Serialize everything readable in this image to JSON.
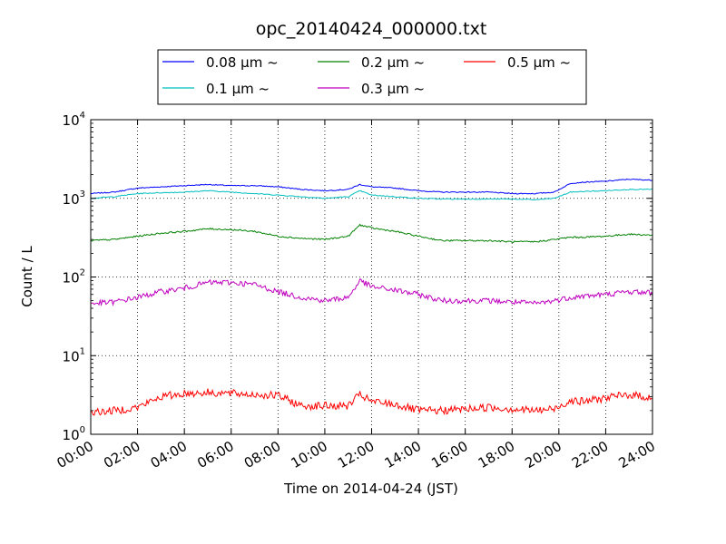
{
  "chart_data": {
    "type": "line",
    "title": "opc_20140424_000000.txt",
    "xlabel": "Time on 2014-04-24 (JST)",
    "ylabel": "Count / L",
    "y_scale": "log",
    "ylim": [
      1,
      10000
    ],
    "xlim": [
      "00:00",
      "24:00"
    ],
    "grid": true,
    "legend_position": "top",
    "x_ticks": [
      "00:00",
      "02:00",
      "04:00",
      "06:00",
      "08:00",
      "10:00",
      "12:00",
      "14:00",
      "16:00",
      "18:00",
      "20:00",
      "22:00",
      "24:00"
    ],
    "y_ticks": [
      {
        "base": "10",
        "exp": "0"
      },
      {
        "base": "10",
        "exp": "1"
      },
      {
        "base": "10",
        "exp": "2"
      },
      {
        "base": "10",
        "exp": "3"
      },
      {
        "base": "10",
        "exp": "4"
      }
    ],
    "x_hours": [
      0,
      1,
      2,
      3,
      4,
      5,
      6,
      7,
      8,
      9,
      10,
      11,
      11.5,
      12,
      13,
      14,
      15,
      16,
      17,
      18,
      19,
      19.8,
      20.5,
      21,
      22,
      23,
      24
    ],
    "series": [
      {
        "name": "0.08 μm ~",
        "color": "#0000ff",
        "noise": 0.006,
        "values": [
          1150,
          1200,
          1350,
          1400,
          1450,
          1500,
          1450,
          1450,
          1400,
          1300,
          1250,
          1300,
          1500,
          1400,
          1350,
          1250,
          1200,
          1200,
          1200,
          1150,
          1150,
          1200,
          1550,
          1600,
          1650,
          1750,
          1700
        ]
      },
      {
        "name": "0.1 μm ~",
        "color": "#00bfbf",
        "noise": 0.006,
        "values": [
          1000,
          1050,
          1150,
          1180,
          1200,
          1250,
          1200,
          1150,
          1100,
          1050,
          1000,
          1050,
          1250,
          1100,
          1050,
          1000,
          980,
          980,
          980,
          980,
          960,
          1000,
          1200,
          1220,
          1250,
          1300,
          1300
        ]
      },
      {
        "name": "0.2 μm ~",
        "color": "#008000",
        "noise": 0.01,
        "values": [
          290,
          300,
          330,
          360,
          380,
          410,
          400,
          380,
          330,
          310,
          300,
          330,
          460,
          420,
          380,
          330,
          290,
          290,
          290,
          280,
          280,
          300,
          320,
          320,
          330,
          350,
          340
        ]
      },
      {
        "name": "0.3 μm ~",
        "color": "#bf00bf",
        "noise": 0.035,
        "values": [
          46,
          48,
          55,
          65,
          72,
          85,
          85,
          80,
          65,
          55,
          50,
          55,
          90,
          75,
          68,
          60,
          50,
          50,
          50,
          48,
          46,
          50,
          55,
          57,
          60,
          65,
          63
        ]
      },
      {
        "name": "0.5 μm ~",
        "color": "#ff0000",
        "noise": 0.05,
        "values": [
          1.9,
          2.0,
          2.2,
          3.0,
          3.3,
          3.4,
          3.3,
          3.2,
          3.1,
          2.3,
          2.3,
          2.3,
          3.2,
          2.6,
          2.4,
          2.0,
          2.0,
          2.1,
          2.2,
          2.1,
          2.0,
          2.1,
          2.7,
          2.6,
          2.9,
          3.2,
          2.9
        ]
      }
    ]
  }
}
